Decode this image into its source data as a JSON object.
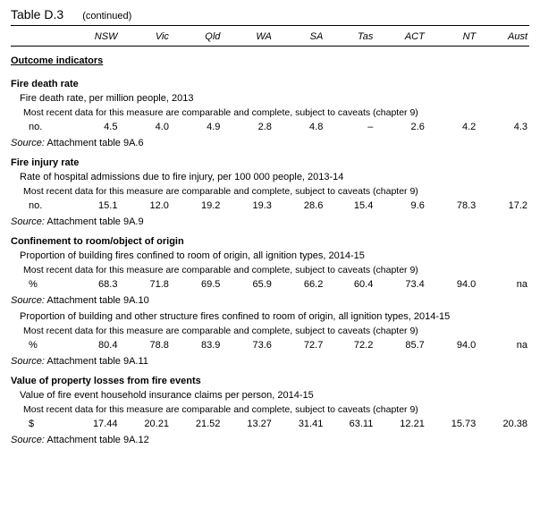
{
  "title": "Table D.3",
  "continued": "(continued)",
  "columns": [
    "",
    "NSW",
    "Vic",
    "Qld",
    "WA",
    "SA",
    "Tas",
    "ACT",
    "NT",
    "Aust"
  ],
  "section_header": "Outcome indicators",
  "comparable_note": "Most recent data for this measure are comparable and complete, subject to caveats (chapter 9)",
  "source_label": "Source:",
  "sections": {
    "fire_death": {
      "header": "Fire death rate",
      "desc": "Fire death rate, per million people, 2013",
      "unit": "no.",
      "values": [
        "4.5",
        "4.0",
        "4.9",
        "2.8",
        "4.8",
        "–",
        "2.6",
        "4.2",
        "4.3"
      ],
      "source": " Attachment table 9A.6"
    },
    "fire_injury": {
      "header": "Fire injury rate",
      "desc": "Rate of hospital admissions due to fire injury, per 100 000 people, 2013-14",
      "unit": "no.",
      "values": [
        "15.1",
        "12.0",
        "19.2",
        "19.3",
        "28.6",
        "15.4",
        "9.6",
        "78.3",
        "17.2"
      ],
      "source": " Attachment table 9A.9"
    },
    "confinement": {
      "header": "Confinement to room/object of origin",
      "desc1": "Proportion of building fires confined to room of origin, all ignition types, 2014-15",
      "unit1": "%",
      "values1": [
        "68.3",
        "71.8",
        "69.5",
        "65.9",
        "66.2",
        "60.4",
        "73.4",
        "94.0",
        "na"
      ],
      "source1": " Attachment table 9A.10",
      "desc2": "Proportion of building and other structure fires confined to room of origin, all ignition types, 2014-15",
      "unit2": "%",
      "values2": [
        "80.4",
        "78.8",
        "83.9",
        "73.6",
        "72.7",
        "72.2",
        "85.7",
        "94.0",
        "na"
      ],
      "source2": " Attachment table 9A.11"
    },
    "property_loss": {
      "header": "Value of property losses from fire events",
      "desc": "Value of fire event household insurance claims per person, 2014-15",
      "unit": "$",
      "values": [
        "17.44",
        "20.21",
        "21.52",
        "13.27",
        "31.41",
        "63.11",
        "12.21",
        "15.73",
        "20.38"
      ],
      "source": " Attachment table 9A.12"
    }
  }
}
